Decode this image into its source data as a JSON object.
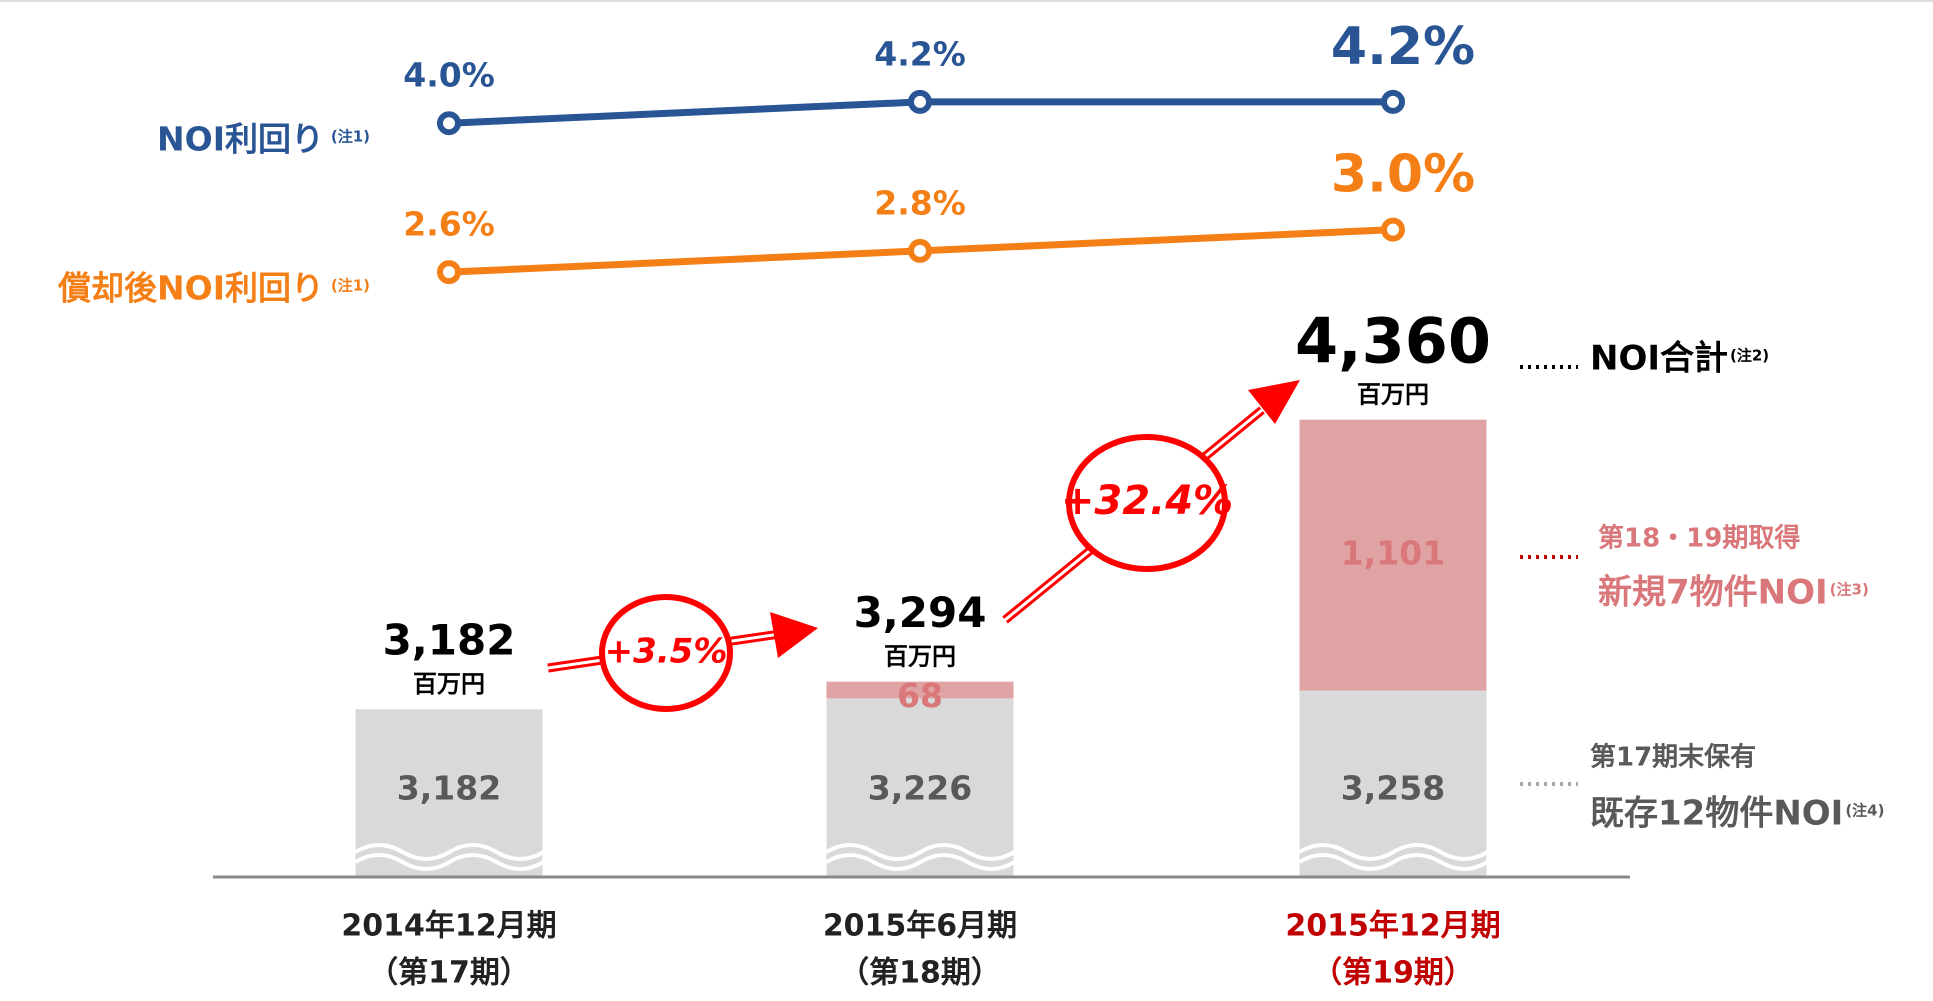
{
  "chart_data": [
    {
      "type": "line",
      "series": [
        {
          "name": "NOI利回り",
          "note": "(注1)",
          "color": "#2a5595",
          "values": [
            4.0,
            4.2,
            4.2
          ],
          "value_labels": [
            "4.0%",
            "4.2%",
            "4.2%"
          ]
        },
        {
          "name": "償却後NOI利回り",
          "note": "(注1)",
          "color": "#f57f17",
          "values": [
            2.6,
            2.8,
            3.0
          ],
          "value_labels": [
            "2.6%",
            "2.8%",
            "3.0%"
          ]
        }
      ],
      "ylim": [
        2.0,
        4.5
      ]
    },
    {
      "type": "stacked_bar",
      "categories": [
        "2014年12月期",
        "2015年6月期",
        "2015年12月期"
      ],
      "category_sublabels": [
        "（第17期）",
        "（第18期）",
        "（第19期）"
      ],
      "highlight_category": 2,
      "highlight_color": "#c00000",
      "series": [
        {
          "name": "既存12物件NOI",
          "name_prefix": "第17期末保有",
          "note": "(注4)",
          "color": "#d9d9d9",
          "label_color": "#595959",
          "values": [
            3182,
            3226,
            3258
          ],
          "value_labels": [
            "3,182",
            "3,226",
            "3,258"
          ]
        },
        {
          "name": "新規7物件NOI",
          "name_prefix": "第18・19期取得",
          "note": "(注3)",
          "color": "#e0a3a3",
          "label_color": "#d9777a",
          "values": [
            null,
            68,
            1101
          ],
          "value_labels": [
            null,
            "68",
            "1,101"
          ]
        }
      ],
      "totals": [
        3182,
        3294,
        4360
      ],
      "total_labels": [
        "3,182",
        "3,294",
        "4,360"
      ],
      "total_unit": "百万円",
      "total_name": "NOI合計",
      "total_note": "(注2)",
      "growth_labels": [
        "+3.5%",
        "+32.4%"
      ],
      "growth_color": "#ff0000",
      "ylim": [
        2500,
        4500
      ],
      "axis_break": true
    }
  ]
}
